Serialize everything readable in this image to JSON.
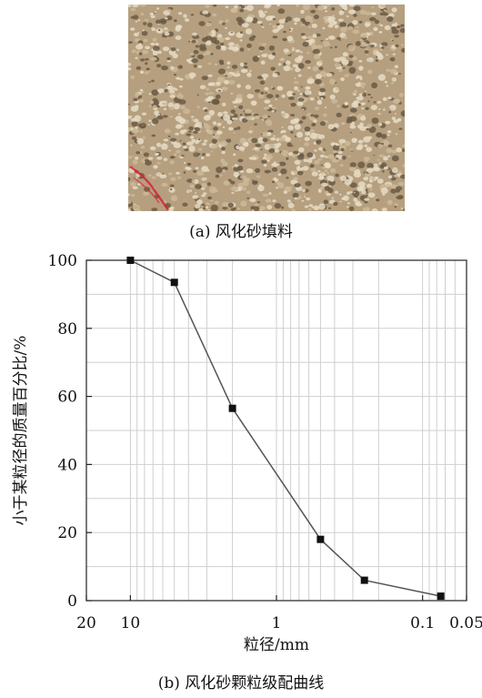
{
  "figure": {
    "caption_a": "(a) 风化砂填料",
    "caption_b": "(b) 风化砂颗粒级配曲线"
  },
  "photo": {
    "subject": "weathered sand fill",
    "colors": {
      "base": "#b59f7f",
      "light": "#e6dcc6",
      "dark": "#6b5a45",
      "mark": "#d6263a"
    }
  },
  "chart_data": {
    "type": "line",
    "xscale": "log",
    "xreversed": true,
    "xlim": [
      20,
      0.05
    ],
    "ylim": [
      0,
      100
    ],
    "xticks": [
      20,
      10,
      1,
      0.1,
      0.05
    ],
    "xtick_labels": [
      "20",
      "10",
      "1",
      "0.1",
      "0.05"
    ],
    "yticks": [
      0,
      20,
      40,
      60,
      80,
      100
    ],
    "xlabel": "粒径/mm",
    "ylabel": "小于某粒径的质量百分比/%",
    "grid": true,
    "series": [
      {
        "x": [
          10,
          5,
          2,
          0.5,
          0.25,
          0.075
        ],
        "y": [
          100,
          93.5,
          56.5,
          18,
          6,
          1.3
        ],
        "marker": "square",
        "color": "#555555"
      }
    ]
  }
}
